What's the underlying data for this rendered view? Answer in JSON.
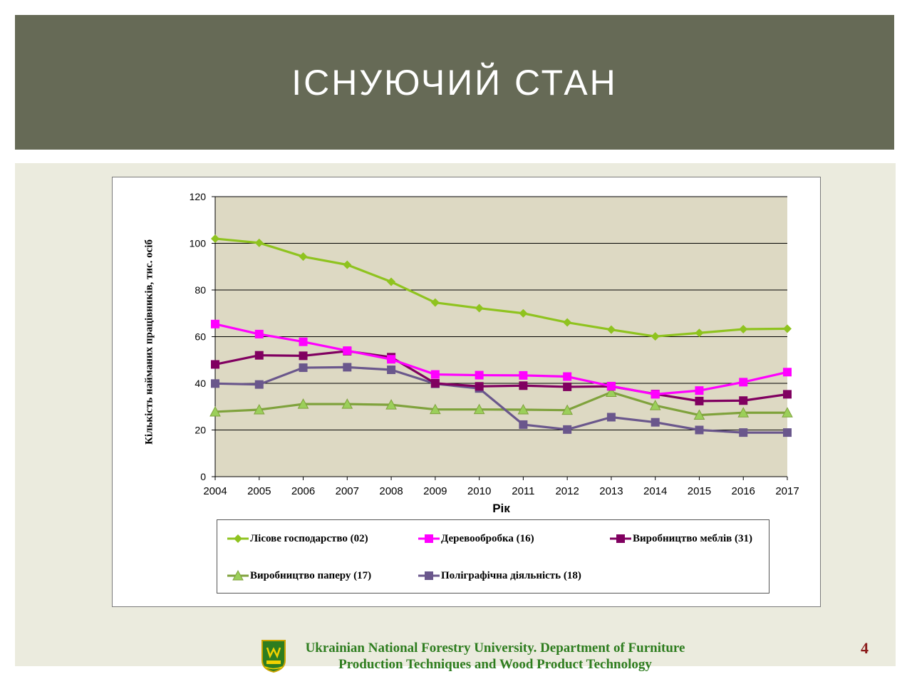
{
  "slide": {
    "title": "ІСНУЮЧИЙ СТАН",
    "footer_line1": "Ukrainian National Forestry University.  Department of Furniture",
    "footer_line2": "Production Techniques and Wood Product Technology",
    "page_number": "4"
  },
  "colors": {
    "header_bg": "#666a56",
    "panel_bg": "#ebebde",
    "plot_bg": "#ddd9c3",
    "footer_text": "#2e7d1f",
    "page_number": "#8b1a1a"
  },
  "chart_data": {
    "type": "line",
    "title": "",
    "xlabel": "Рік",
    "ylabel": "Кількість  найманих  працівників,  тис.  осіб",
    "ylim": [
      0,
      120
    ],
    "yticks": [
      0,
      20,
      40,
      60,
      80,
      100,
      120
    ],
    "grid": "horizontal",
    "legend_position": "bottom",
    "categories": [
      "2004",
      "2005",
      "2006",
      "2007",
      "2008",
      "2009",
      "2010",
      "2011",
      "2012",
      "2013",
      "2014",
      "2015",
      "2016",
      "2017"
    ],
    "series": [
      {
        "name": "Лісове господарство  (02)",
        "color": "#8fc31f",
        "marker": "diamond",
        "values": [
          102,
          100.2,
          94.3,
          90.8,
          83.5,
          74.6,
          72.2,
          70,
          66.1,
          63,
          60.1,
          61.6,
          63.2,
          63.4
        ]
      },
      {
        "name": "Деревообробка  (16)",
        "color": "#ff00ff",
        "marker": "square",
        "values": [
          65.4,
          61.1,
          57.8,
          54,
          50.3,
          43.8,
          43.5,
          43.4,
          42.9,
          38.8,
          35.3,
          36.9,
          40.5,
          44.8
        ]
      },
      {
        "name": "Виробництво  меблів (31)",
        "color": "#800060",
        "marker": "square",
        "values": [
          48.1,
          52,
          51.8,
          53.8,
          51.2,
          40,
          38.7,
          39,
          38.5,
          38.7,
          35.4,
          32.4,
          32.6,
          35.3
        ]
      },
      {
        "name": "Виробництво  паперу (17)",
        "color": "#7fa23c",
        "marker": "triangle",
        "values": [
          27.8,
          28.7,
          31.1,
          31.1,
          30.8,
          28.8,
          28.8,
          28.7,
          28.5,
          36.2,
          30.5,
          26.4,
          27.4,
          27.4
        ]
      },
      {
        "name": "Поліграфічна  діяльність  (18)",
        "color": "#6a578c",
        "marker": "square",
        "values": [
          39.9,
          39.5,
          46.7,
          46.9,
          45.8,
          39.8,
          37.8,
          22.3,
          20.2,
          25.5,
          23.3,
          20,
          18.9,
          18.9
        ]
      }
    ]
  }
}
